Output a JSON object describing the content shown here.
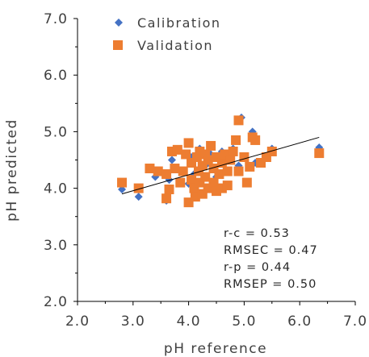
{
  "chart_data": {
    "type": "scatter",
    "xlabel": "pH reference",
    "ylabel": "pH predicted",
    "xlim": [
      2.0,
      7.0
    ],
    "ylim": [
      2.0,
      7.0
    ],
    "x_ticks": [
      "2.0",
      "3.0",
      "4.0",
      "5.0",
      "6.0",
      "7.0"
    ],
    "y_ticks": [
      "2.0",
      "3.0",
      "4.0",
      "5.0",
      "6.0",
      "7.0"
    ],
    "grid": false,
    "legend_position": "top-left",
    "series": [
      {
        "name": "Calibration",
        "marker": "diamond",
        "color": "#4472C4",
        "points": [
          [
            2.8,
            3.98
          ],
          [
            3.1,
            3.85
          ],
          [
            3.4,
            4.2
          ],
          [
            3.6,
            3.78
          ],
          [
            3.65,
            4.15
          ],
          [
            3.7,
            4.5
          ],
          [
            3.9,
            4.3
          ],
          [
            4.0,
            4.08
          ],
          [
            4.05,
            4.55
          ],
          [
            4.1,
            4.25
          ],
          [
            4.2,
            4.7
          ],
          [
            4.3,
            4.4
          ],
          [
            4.4,
            4.6
          ],
          [
            4.5,
            4.2
          ],
          [
            4.55,
            3.95
          ],
          [
            4.6,
            4.65
          ],
          [
            4.7,
            4.5
          ],
          [
            4.8,
            4.7
          ],
          [
            4.9,
            4.4
          ],
          [
            4.95,
            5.25
          ],
          [
            5.15,
            5.0
          ],
          [
            5.2,
            4.45
          ],
          [
            5.5,
            4.7
          ],
          [
            6.35,
            4.72
          ]
        ]
      },
      {
        "name": "Validation",
        "marker": "square",
        "color": "#ED7D31",
        "points": [
          [
            2.8,
            4.1
          ],
          [
            3.1,
            4.0
          ],
          [
            3.3,
            4.35
          ],
          [
            3.45,
            4.3
          ],
          [
            3.6,
            3.82
          ],
          [
            3.6,
            4.25
          ],
          [
            3.65,
            3.98
          ],
          [
            3.7,
            4.65
          ],
          [
            3.75,
            4.35
          ],
          [
            3.8,
            4.68
          ],
          [
            3.85,
            4.1
          ],
          [
            3.9,
            4.3
          ],
          [
            3.95,
            4.6
          ],
          [
            4.0,
            4.8
          ],
          [
            4.0,
            3.75
          ],
          [
            4.05,
            4.45
          ],
          [
            4.05,
            4.15
          ],
          [
            4.1,
            4.0
          ],
          [
            4.12,
            3.85
          ],
          [
            4.15,
            4.55
          ],
          [
            4.18,
            4.3
          ],
          [
            4.2,
            4.1
          ],
          [
            4.2,
            4.65
          ],
          [
            4.25,
            4.4
          ],
          [
            4.25,
            3.9
          ],
          [
            4.3,
            4.2
          ],
          [
            4.3,
            4.6
          ],
          [
            4.35,
            4.5
          ],
          [
            4.35,
            4.0
          ],
          [
            4.4,
            4.75
          ],
          [
            4.45,
            4.35
          ],
          [
            4.45,
            4.1
          ],
          [
            4.5,
            4.55
          ],
          [
            4.5,
            3.95
          ],
          [
            4.55,
            4.25
          ],
          [
            4.6,
            4.45
          ],
          [
            4.6,
            4.0
          ],
          [
            4.65,
            4.6
          ],
          [
            4.7,
            4.3
          ],
          [
            4.7,
            4.05
          ],
          [
            4.75,
            4.5
          ],
          [
            4.8,
            4.65
          ],
          [
            4.85,
            4.85
          ],
          [
            4.9,
            4.3
          ],
          [
            4.9,
            5.2
          ],
          [
            5.0,
            4.55
          ],
          [
            5.05,
            4.1
          ],
          [
            5.1,
            4.38
          ],
          [
            5.15,
            4.9
          ],
          [
            5.2,
            4.85
          ],
          [
            5.3,
            4.45
          ],
          [
            5.4,
            4.55
          ],
          [
            5.5,
            4.65
          ],
          [
            6.35,
            4.62
          ]
        ]
      }
    ],
    "trendline": {
      "x": [
        2.8,
        6.35
      ],
      "y": [
        3.9,
        4.9
      ],
      "color": "#000000"
    },
    "annotations": [
      "r-c = 0.53",
      "RMSEC = 0.47",
      "r-p = 0.44",
      "RMSEP = 0.50"
    ]
  }
}
